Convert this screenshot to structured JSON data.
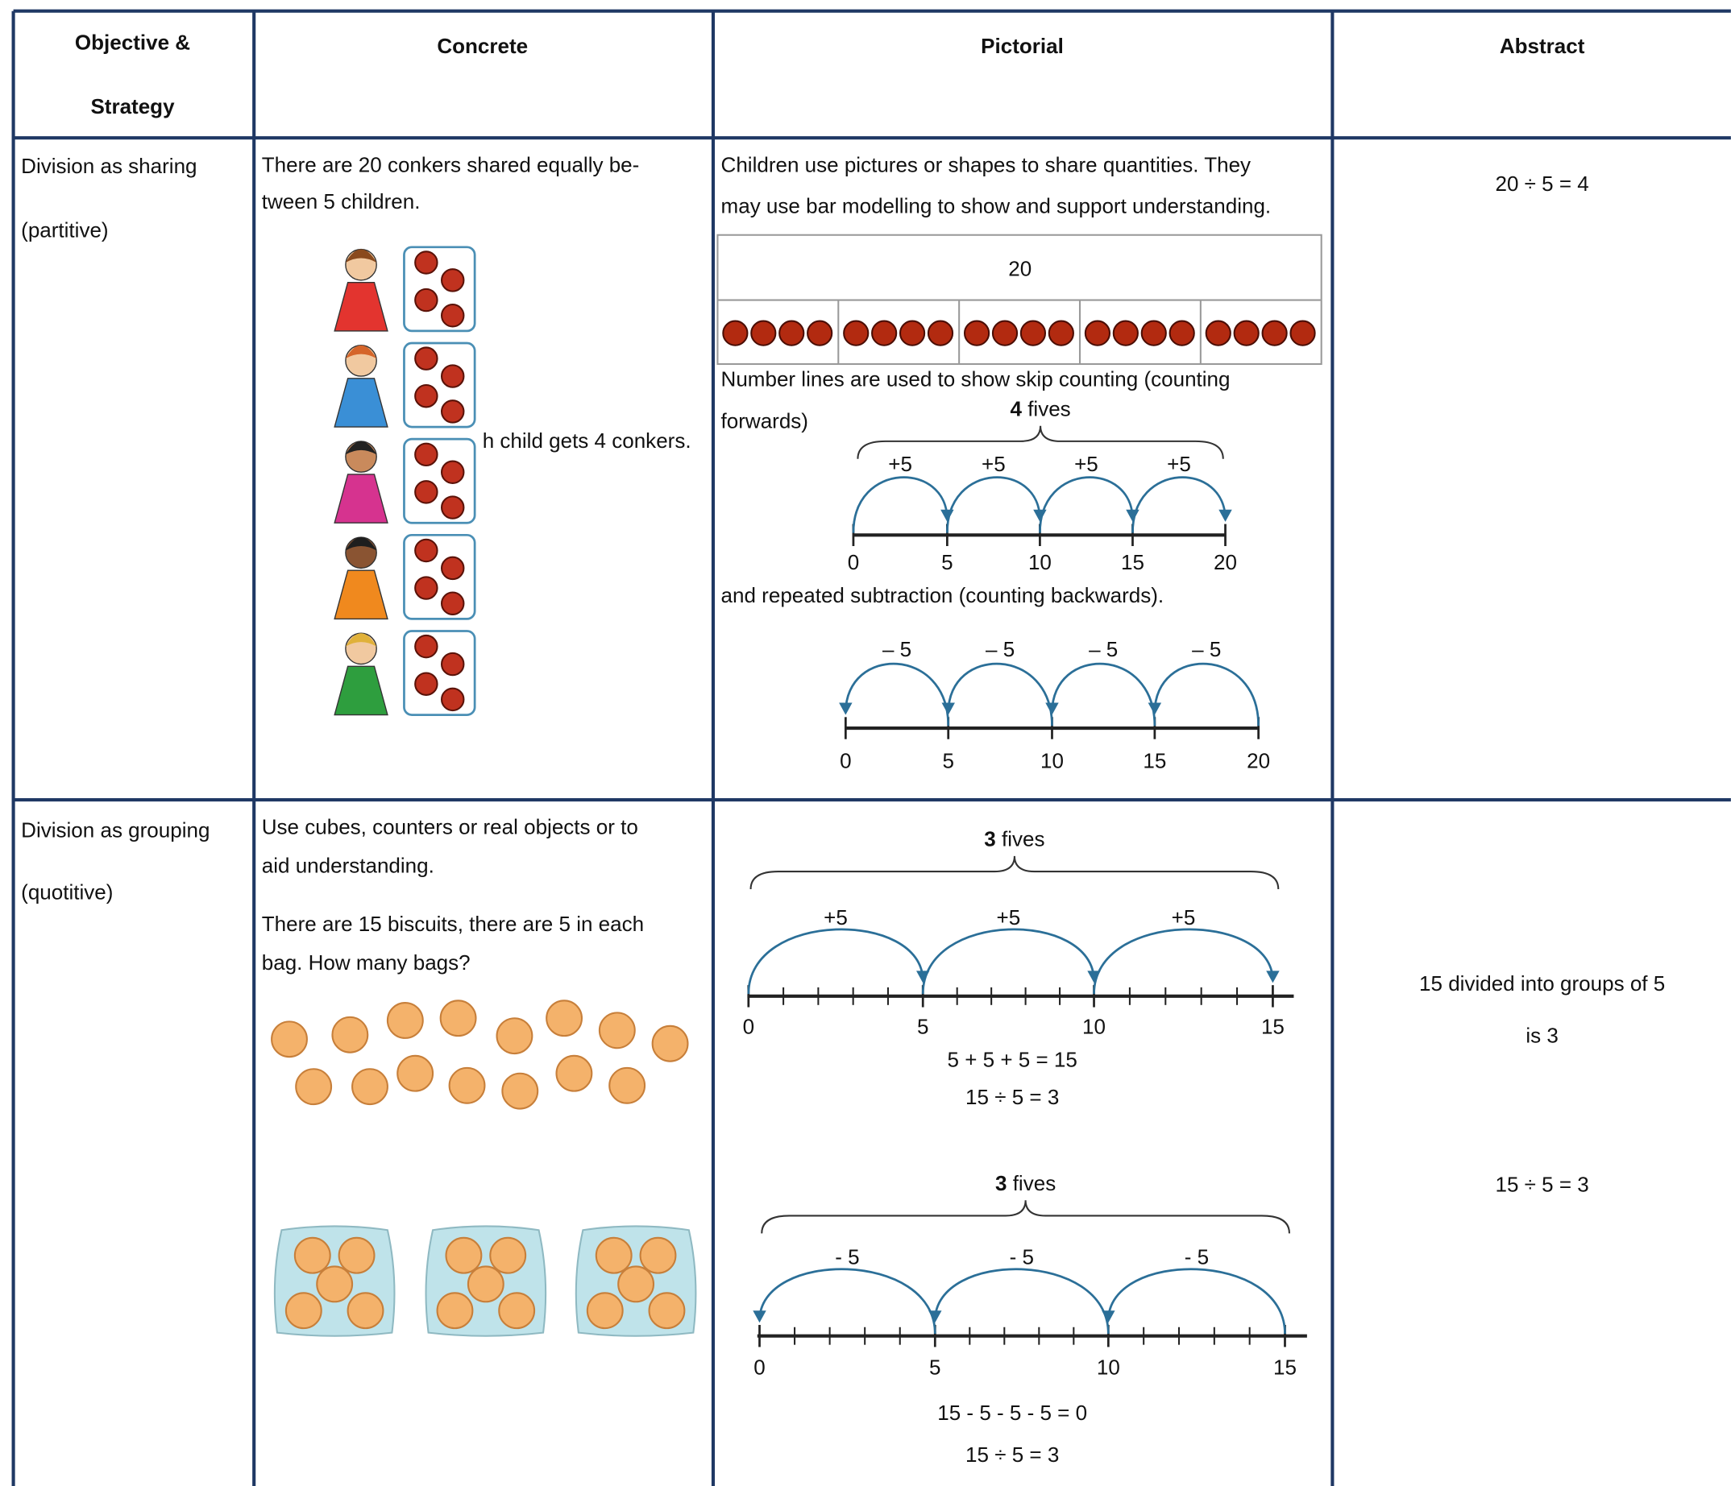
{
  "header": {
    "objective": [
      "Objective &",
      "Strategy"
    ],
    "concrete": "Concrete",
    "pictorial": "Pictorial",
    "abstract": "Abstract"
  },
  "rows": [
    {
      "objective": [
        "Division as sharing",
        "(partitive)"
      ],
      "concrete": {
        "lines": [
          "There are 20 conkers shared equally be-",
          "tween 5 children."
        ],
        "caption": "h child gets 4 conkers."
      },
      "pictorial": {
        "intro": [
          "Children use pictures or shapes to share quantities. They",
          "may use bar modelling to show and support understanding."
        ],
        "bar_total": "20",
        "skip_text": [
          "Number lines are used to show skip counting (counting",
          "forwards)"
        ],
        "forward_line": {
          "brace": {
            "count": "4",
            "unit": "fives"
          },
          "jumps": [
            "+5",
            "+5",
            "+5",
            "+5"
          ],
          "ticks": [
            "0",
            "5",
            "10",
            "15",
            "20"
          ]
        },
        "subtract_text": "and repeated subtraction (counting backwards).",
        "backward_line": {
          "jumps": [
            "– 5",
            "– 5",
            "– 5",
            "– 5"
          ],
          "ticks": [
            "0",
            "5",
            "10",
            "15",
            "20"
          ]
        }
      },
      "abstract": [
        "20 ÷ 5 = 4"
      ]
    },
    {
      "objective": [
        "Division as grouping",
        "(quotitive)"
      ],
      "concrete": {
        "lines": [
          "Use cubes, counters or  real objects or to",
          "aid understanding."
        ],
        "question": [
          "There are 15 biscuits, there are 5 in each",
          "bag. How many bags?"
        ]
      },
      "pictorial": {
        "forward_line": {
          "brace": {
            "count": "3",
            "unit": "fives"
          },
          "jumps": [
            "+5",
            "+5",
            "+5"
          ],
          "ticks": [
            "0",
            "5",
            "10",
            "15"
          ],
          "equations": [
            "5 + 5 + 5 = 15",
            "15 ÷ 5 = 3"
          ]
        },
        "backward_line": {
          "brace": {
            "count": "3",
            "unit": "fives"
          },
          "jumps": [
            "- 5",
            "- 5",
            "- 5"
          ],
          "ticks": [
            "0",
            "5",
            "10",
            "15"
          ],
          "equations": [
            "15 - 5 - 5 - 5 = 0",
            "15 ÷ 5 = 3"
          ]
        }
      },
      "abstract": [
        "15 divided into groups of 5",
        "is 3",
        "15 ÷ 5 = 3"
      ]
    }
  ]
}
